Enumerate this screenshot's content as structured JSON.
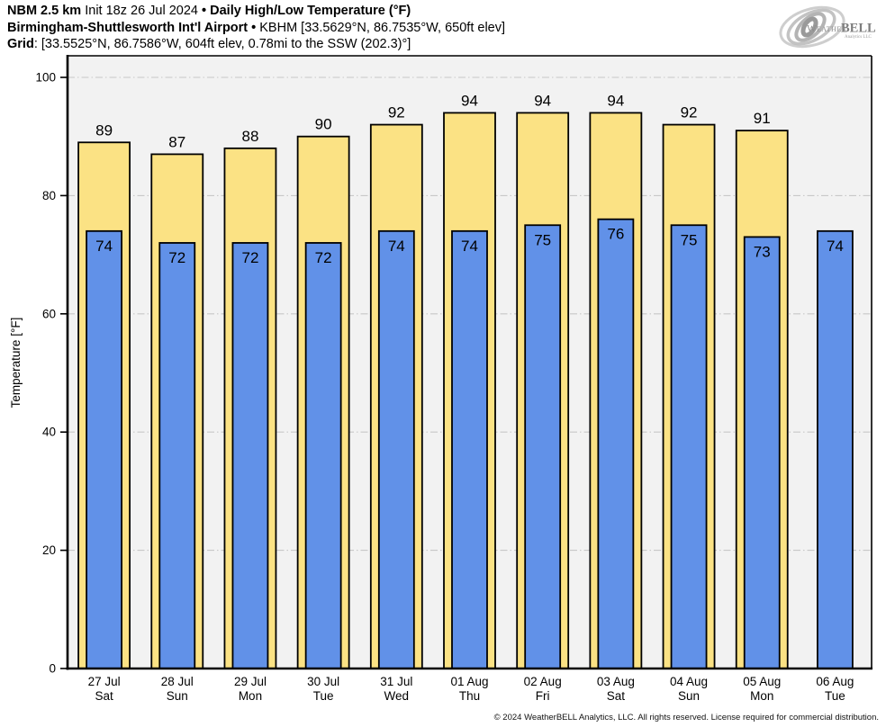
{
  "header": {
    "line1": {
      "model": "NBM 2.5 km",
      "init": "Init 18z 26 Jul 2024",
      "bullet": "•",
      "title": "Daily High/Low Temperature (°F)"
    },
    "line2": {
      "station": "Birmingham-Shuttlesworth Int'l Airport",
      "bullet": "•",
      "detail": "KBHM [33.5629°N, 86.7535°W, 650ft elev]"
    },
    "line3": {
      "label": "Grid",
      "detail": ": [33.5525°N, 86.7586°W, 604ft elev, 0.78mi to the SSW (202.3)°]"
    }
  },
  "logo": {
    "brand_weather": "Weather",
    "brand_bell": "BELL",
    "subtitle": "Analytics LLC"
  },
  "footer": {
    "copyright": "© 2024 WeatherBELL Analytics, LLC. All rights reserved. License required for commercial distribution."
  },
  "colors": {
    "high_bar": "#fbe284",
    "low_bar": "#6191e8",
    "bar_outline": "#000000",
    "plot_bg": "#f2f2f2",
    "gridline": "#c8c8c8",
    "axis": "#000000"
  },
  "chart_data": {
    "type": "bar",
    "title": "Daily High/Low Temperature (°F)",
    "ylabel": "Temperature [°F]",
    "ylim": [
      0,
      103.6
    ],
    "yticks": [
      0,
      20,
      40,
      60,
      80,
      100
    ],
    "grid": true,
    "legend_position": "none",
    "categories": [
      "27 Jul",
      "28 Jul",
      "29 Jul",
      "30 Jul",
      "31 Jul",
      "01 Aug",
      "02 Aug",
      "03 Aug",
      "04 Aug",
      "05 Aug",
      "06 Aug"
    ],
    "weekdays": [
      "Sat",
      "Sun",
      "Mon",
      "Tue",
      "Wed",
      "Thu",
      "Fri",
      "Sat",
      "Sun",
      "Mon",
      "Tue"
    ],
    "series": [
      {
        "name": "High",
        "values": [
          89,
          87,
          88,
          90,
          92,
          94,
          94,
          94,
          92,
          91,
          null
        ]
      },
      {
        "name": "Low",
        "values": [
          74,
          72,
          72,
          72,
          74,
          74,
          75,
          76,
          75,
          73,
          74
        ]
      }
    ]
  }
}
